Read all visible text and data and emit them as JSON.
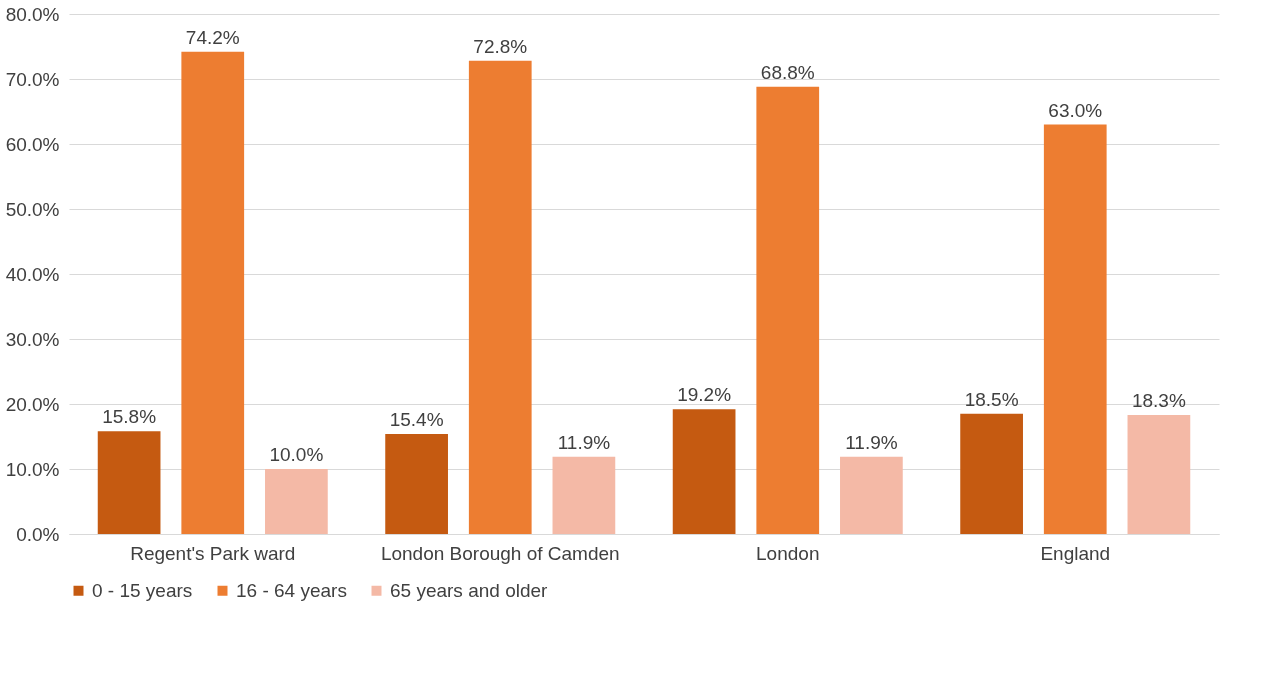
{
  "chart_data": {
    "type": "bar",
    "categories": [
      "Regent's Park ward",
      "London Borough of Camden",
      "London",
      "England"
    ],
    "series": [
      {
        "name": "0 - 15 years",
        "color": "#c55a11",
        "values": [
          15.8,
          15.4,
          19.2,
          18.5
        ],
        "value_labels": [
          "15.8%",
          "15.4%",
          "19.2%",
          "18.5%"
        ]
      },
      {
        "name": "16 - 64 years",
        "color": "#ed7d31",
        "values": [
          74.2,
          72.8,
          68.8,
          63.0
        ],
        "value_labels": [
          "74.2%",
          "72.8%",
          "68.8%",
          "63.0%"
        ]
      },
      {
        "name": "65 years and older",
        "color": "#f4b9a6",
        "values": [
          10.0,
          11.9,
          11.9,
          18.3
        ],
        "value_labels": [
          "10.0%",
          "11.9%",
          "11.9%",
          "18.3%"
        ]
      }
    ],
    "ylim": [
      0,
      80
    ],
    "yticks": [
      {
        "value": 0,
        "label": "0.0%"
      },
      {
        "value": 10,
        "label": "10.0%"
      },
      {
        "value": 20,
        "label": "20.0%"
      },
      {
        "value": 30,
        "label": "30.0%"
      },
      {
        "value": 40,
        "label": "40.0%"
      },
      {
        "value": 50,
        "label": "50.0%"
      },
      {
        "value": 60,
        "label": "60.0%"
      },
      {
        "value": 70,
        "label": "70.0%"
      },
      {
        "value": 80,
        "label": "80.0%"
      }
    ],
    "grid": "y",
    "legend": "bottom"
  }
}
